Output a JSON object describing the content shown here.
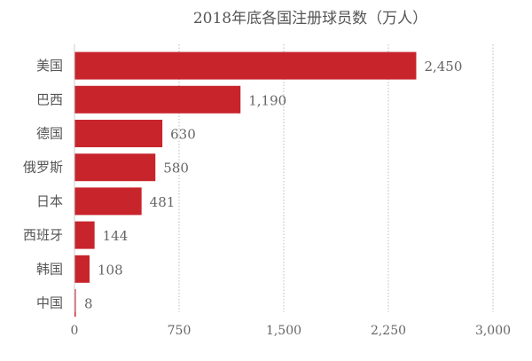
{
  "chart_data": {
    "type": "bar",
    "orientation": "horizontal",
    "title": "2018年底各国注册球员数（万人）",
    "categories": [
      "美国",
      "巴西",
      "德国",
      "俄罗斯",
      "日本",
      "西班牙",
      "韩国",
      "中国"
    ],
    "values": [
      2450,
      1190,
      630,
      580,
      481,
      144,
      108,
      8
    ],
    "value_labels": [
      "2,450",
      "1,190",
      "630",
      "580",
      "481",
      "144",
      "108",
      "8"
    ],
    "xlim": [
      0,
      3000
    ],
    "xticks": [
      0,
      750,
      1500,
      2250,
      3000
    ],
    "xtick_labels": [
      "0",
      "750",
      "1,500",
      "2,250",
      "3,000"
    ],
    "xlabel": "",
    "ylabel": "",
    "grid": "vertical dotted",
    "bar_color": "#c8242c"
  }
}
